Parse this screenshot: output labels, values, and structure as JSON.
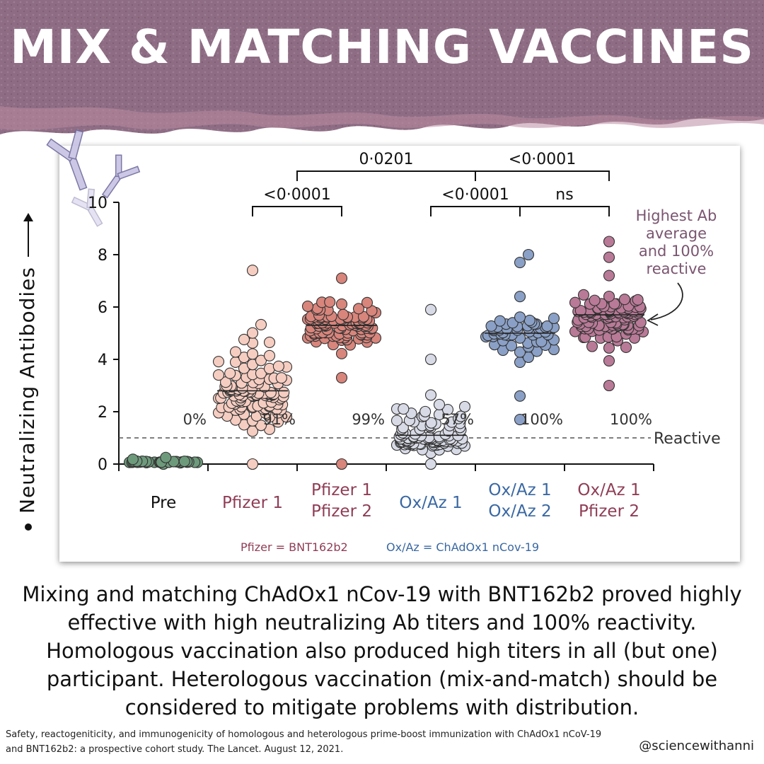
{
  "title": "MIX & MATCHING VACCINES",
  "colors": {
    "banner": "#8e6d84",
    "pfizer_fill": "#f6cdc1",
    "pfizer2_fill": "#d8857c",
    "oxaz_fill": "#d8dbe6",
    "oxaz2_fill": "#8aa0c6",
    "mixed_fill": "#b97a97",
    "pre_fill": "#6e9a7c",
    "pfizer_text": "#8f3d56",
    "oxaz_text": "#3a68a2",
    "annotation_text": "#7a5570"
  },
  "y_axis_caption": "Neutralizing Antibodies",
  "chart_data": {
    "type": "scatter",
    "ylim": [
      0,
      10
    ],
    "yticks": [
      "0",
      "2",
      "4",
      "6",
      "8",
      "10"
    ],
    "groups": [
      {
        "label_lines": [
          "Pre"
        ],
        "label_color": "#111111",
        "percent": "0%",
        "median": null,
        "fill": "#6e9a7c",
        "n": 30,
        "min": 0.0,
        "max": 0.25,
        "center": 0.08,
        "count_outliers": []
      },
      {
        "label_lines": [
          "Pfizer 1"
        ],
        "label_color": "#8f3d56",
        "percent": "91%",
        "median": 2.8,
        "fill": "#f6cdc1",
        "n": 120,
        "min": 0.0,
        "max": 7.4,
        "center": 2.8,
        "count_outliers": []
      },
      {
        "label_lines": [
          "Pfizer 1",
          "Pfizer 2"
        ],
        "label_color": "#8f3d56",
        "percent": "99%",
        "median": 5.3,
        "fill": "#d8857c",
        "n": 110,
        "min": 3.3,
        "max": 7.1,
        "center": 5.3,
        "count_outliers": [
          0.0
        ]
      },
      {
        "label_lines": [
          "Ox/Az 1"
        ],
        "label_color": "#3a68a2",
        "percent": "57%",
        "median": 1.1,
        "fill": "#d8dbe6",
        "n": 110,
        "min": 0.0,
        "max": 4.0,
        "center": 1.0,
        "count_outliers": [
          5.9
        ]
      },
      {
        "label_lines": [
          "Ox/Az 1",
          "Ox/Az 2"
        ],
        "label_color": "#3a68a2",
        "percent": "100%",
        "median": 5.0,
        "fill": "#8aa0c6",
        "n": 55,
        "min": 2.6,
        "max": 6.4,
        "center": 5.0,
        "count_outliers": [
          1.7,
          7.7,
          8.0
        ]
      },
      {
        "label_lines": [
          "Ox/Az 1",
          "Pfizer 2"
        ],
        "label_color": "#8f3d56",
        "percent": "100%",
        "median": 5.7,
        "fill": "#b97a97",
        "n": 110,
        "min": 3.0,
        "max": 7.2,
        "center": 5.7,
        "count_outliers": [
          7.9,
          8.5
        ]
      }
    ],
    "threshold": {
      "value": 1.0,
      "label": "Reactive"
    },
    "comparisons": [
      {
        "from": 1,
        "to": 2,
        "label": "<0·0001",
        "level": 0
      },
      {
        "from": 3,
        "to": 4,
        "label": "<0·0001",
        "level": 0
      },
      {
        "from": 4,
        "to": 5,
        "label": "ns",
        "level": 0
      },
      {
        "from": 1.5,
        "to": 3.5,
        "label": "0·0201",
        "level": 1
      },
      {
        "from": 3.5,
        "to": 5,
        "label": "<0·0001",
        "level": 1
      }
    ],
    "annotation": "Highest Ab average and 100% reactive",
    "legend": [
      {
        "text": "Pfizer = BNT162b2",
        "color": "#8f3d56"
      },
      {
        "text": "Ox/Az = ChAdOx1 nCov-19",
        "color": "#3a68a2"
      }
    ]
  },
  "summary": "Mixing and matching ChAdOx1 nCov-19 with BNT162b2 proved highly effective with high neutralizing Ab titers and 100% reactivity. Homologous vaccination also produced high titers in all (but one) participant. Heterologous vaccination (mix-and-match) should be considered to mitigate problems with distribution.",
  "citation": "Safety, reactogeniticity, and immunogenicity of homologous and heterologous prime-boost immunization with ChAdOx1 nCoV-19 and BNT162b2: a prospective cohort study. The Lancet. August 12, 2021.",
  "handle": "@sciencewithanni"
}
